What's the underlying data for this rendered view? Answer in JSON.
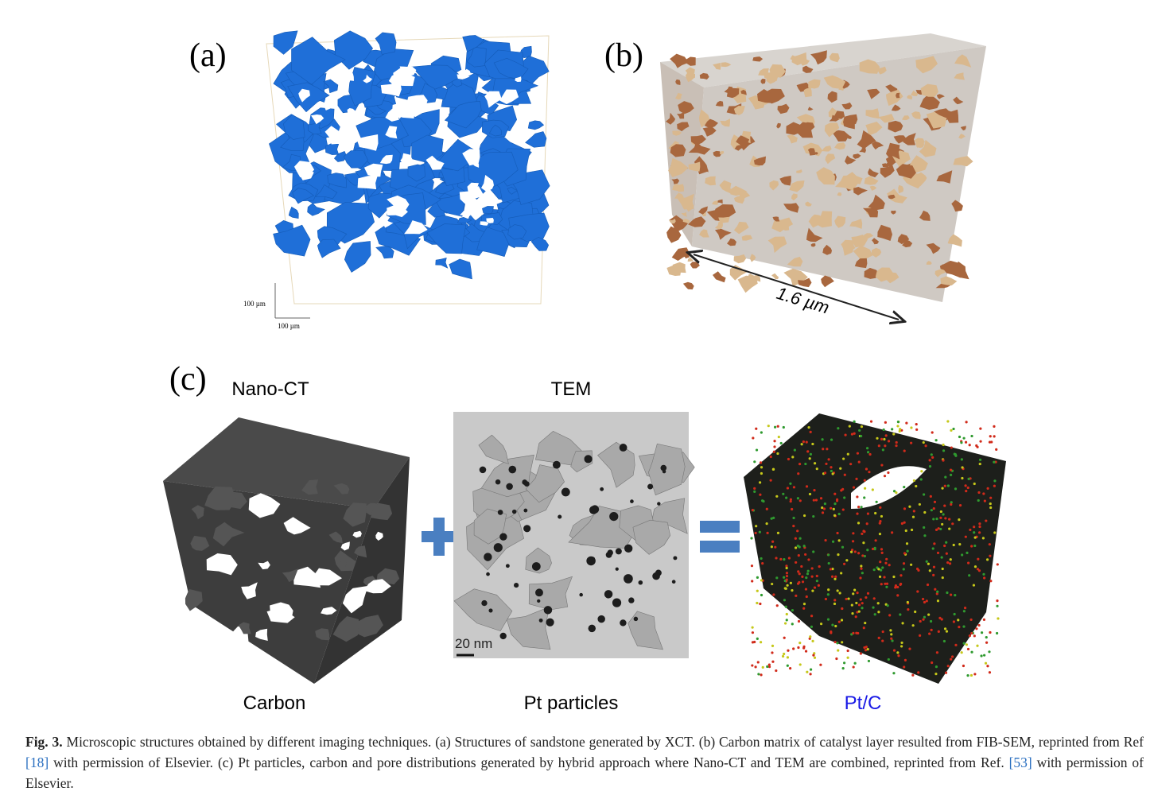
{
  "figure": {
    "panels": [
      {
        "label": "(a)",
        "scale_labels": [
          "100 µm",
          "100 µm"
        ]
      },
      {
        "label": "(b)",
        "dimension": "1.6 µm"
      },
      {
        "label": "(c)",
        "titles": [
          "Nano-CT",
          "TEM"
        ],
        "scale_bar": "20 nm",
        "captions": [
          "Carbon",
          "Pt particles",
          "Pt/C"
        ]
      }
    ],
    "caption": {
      "label": "Fig. 3.",
      "parts": [
        " Microscopic structures obtained by different imaging techniques. (a) Structures of sandstone generated by XCT. (b) Carbon matrix of catalyst layer resulted from FIB-SEM, reprinted from Ref ",
        "[18]",
        " with permission of Elsevier. (c) Pt particles, carbon and pore distributions generated by hybrid approach where Nano-CT and TEM are combined, reprinted from Ref. ",
        "[53]",
        " with permission of Elsevier."
      ]
    }
  }
}
